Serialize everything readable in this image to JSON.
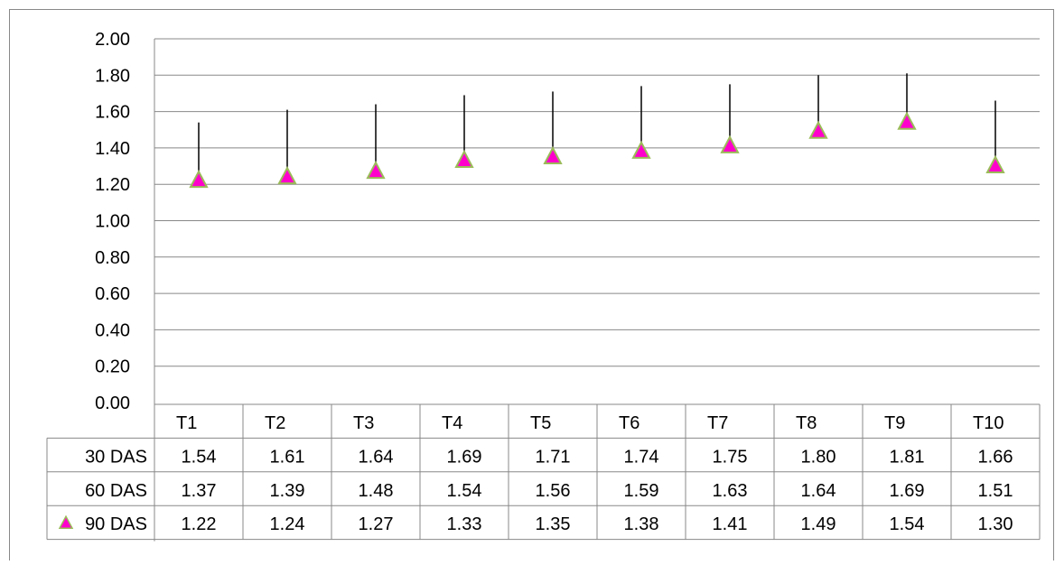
{
  "chart_data": {
    "type": "line",
    "categories": [
      "T1",
      "T2",
      "T3",
      "T4",
      "T5",
      "T6",
      "T7",
      "T8",
      "T9",
      "T10"
    ],
    "series": [
      {
        "name": "30 DAS",
        "values": [
          1.54,
          1.61,
          1.64,
          1.69,
          1.71,
          1.74,
          1.75,
          1.8,
          1.81,
          1.66
        ],
        "display": "1.54|1.61|1.64|1.69|1.71|1.74|1.75|1.80|1.81|1.66"
      },
      {
        "name": "60 DAS",
        "values": [
          1.37,
          1.39,
          1.48,
          1.54,
          1.56,
          1.59,
          1.63,
          1.64,
          1.69,
          1.51
        ],
        "display": "1.37|1.39|1.48|1.54|1.56|1.59|1.63|1.64|1.69|1.51"
      },
      {
        "name": "90 DAS",
        "values": [
          1.22,
          1.24,
          1.27,
          1.33,
          1.35,
          1.38,
          1.41,
          1.49,
          1.54,
          1.3
        ],
        "display": "1.22|1.24|1.27|1.33|1.35|1.38|1.41|1.49|1.54|1.30",
        "marker": "triangle"
      }
    ],
    "ylim": [
      0,
      2.0
    ],
    "yticks": [
      "0.00",
      "0.20",
      "0.40",
      "0.60",
      "0.80",
      "1.00",
      "1.20",
      "1.40",
      "1.60",
      "1.80",
      "2.00"
    ],
    "grid": true,
    "high_low_lines": true,
    "legend": "data-table",
    "colors": {
      "marker_fill": "#ff00cc",
      "marker_stroke": "#9bbb59",
      "line": "#000000",
      "grid": "#888888"
    }
  }
}
